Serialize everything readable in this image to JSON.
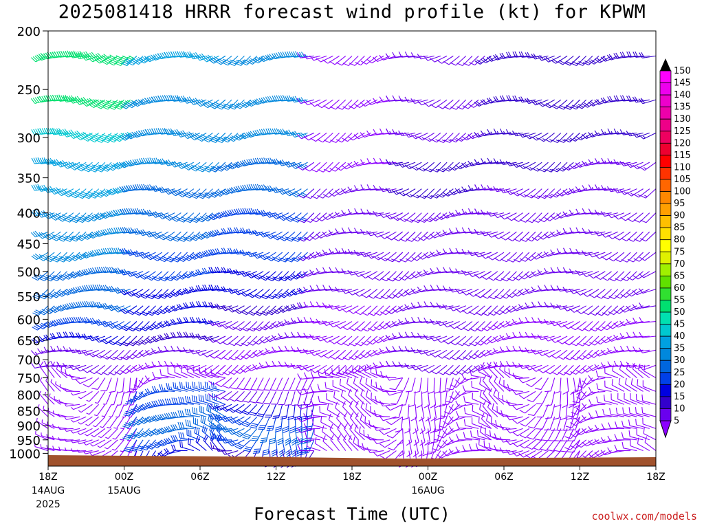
{
  "title": "2025081418 HRRR forecast wind profile (kt) for KPWM",
  "xlabel": "Forecast Time (UTC)",
  "credit": "coolwx.com/models",
  "chart_data": {
    "type": "wind-barb-time-height",
    "y_axis": {
      "scale": "log",
      "reversed": true,
      "ylim": [
        200,
        1050
      ],
      "ticks": [
        200,
        250,
        300,
        350,
        400,
        450,
        500,
        550,
        600,
        650,
        700,
        750,
        800,
        850,
        900,
        950,
        1000
      ]
    },
    "x_axis": {
      "range_hours": [
        0,
        48
      ],
      "ticks": [
        {
          "h": 0,
          "label": "18Z",
          "sub1": "14AUG",
          "sub2": "2025"
        },
        {
          "h": 6,
          "label": "00Z",
          "sub1": "15AUG",
          "sub2": ""
        },
        {
          "h": 12,
          "label": "06Z",
          "sub1": "",
          "sub2": ""
        },
        {
          "h": 18,
          "label": "12Z",
          "sub1": "",
          "sub2": ""
        },
        {
          "h": 24,
          "label": "18Z",
          "sub1": "",
          "sub2": ""
        },
        {
          "h": 30,
          "label": "00Z",
          "sub1": "16AUG",
          "sub2": ""
        },
        {
          "h": 36,
          "label": "06Z",
          "sub1": "",
          "sub2": ""
        },
        {
          "h": 42,
          "label": "12Z",
          "sub1": "",
          "sub2": ""
        },
        {
          "h": 48,
          "label": "18Z",
          "sub1": "",
          "sub2": ""
        }
      ]
    },
    "colorbar": {
      "levels": [
        5,
        10,
        15,
        20,
        25,
        30,
        35,
        40,
        45,
        50,
        55,
        60,
        65,
        70,
        75,
        80,
        85,
        90,
        95,
        100,
        105,
        110,
        115,
        120,
        125,
        130,
        135,
        140,
        145,
        150
      ],
      "colors": [
        "#8b00ff",
        "#6a00ee",
        "#3300cc",
        "#0000e0",
        "#0040e8",
        "#0066dd",
        "#0088dd",
        "#00a0e0",
        "#00c8d0",
        "#00e0b0",
        "#00e070",
        "#30e030",
        "#60e000",
        "#a0f000",
        "#e0f000",
        "#ffff00",
        "#ffe000",
        "#ffc000",
        "#ffa000",
        "#ff8800",
        "#ff6600",
        "#ff3300",
        "#ff0000",
        "#ee0030",
        "#ee0060",
        "#ee0088",
        "#ee00aa",
        "#ee00cc",
        "#ee00ee",
        "#ff00ff"
      ]
    },
    "terrain_color": "#a0522d",
    "levels_hpa": [
      220,
      260,
      295,
      330,
      365,
      400,
      430,
      465,
      500,
      535,
      570,
      605,
      640,
      675,
      715,
      750,
      790,
      830,
      870,
      910,
      950,
      990
    ],
    "segments": [
      {
        "h0": 0,
        "h1": 6.8,
        "values": [
          58,
          55,
          48,
          44,
          41,
          38,
          36,
          35,
          34,
          32,
          30,
          28,
          20,
          14,
          10,
          8,
          7,
          6,
          6,
          6,
          6,
          5
        ]
      },
      {
        "h0": 7,
        "h1": 14,
        "values": [
          40,
          38,
          38,
          36,
          34,
          32,
          30,
          28,
          26,
          24,
          22,
          20,
          18,
          12,
          8,
          8,
          25,
          28,
          30,
          30,
          28,
          20
        ]
      },
      {
        "h0": 14,
        "h1": 20.8,
        "values": [
          35,
          35,
          35,
          33,
          31,
          29,
          27,
          25,
          23,
          21,
          19,
          14,
          10,
          8,
          8,
          8,
          12,
          20,
          28,
          30,
          28,
          15
        ]
      },
      {
        "h0": 21,
        "h1": 28,
        "values": [
          8,
          8,
          8,
          8,
          10,
          12,
          12,
          14,
          12,
          10,
          8,
          8,
          8,
          8,
          8,
          8,
          8,
          8,
          8,
          8,
          8,
          8
        ]
      },
      {
        "h0": 28,
        "h1": 35,
        "values": [
          12,
          12,
          14,
          15,
          15,
          14,
          12,
          12,
          10,
          10,
          10,
          10,
          10,
          10,
          10,
          8,
          8,
          8,
          8,
          8,
          8,
          8
        ]
      },
      {
        "h0": 35,
        "h1": 42,
        "values": [
          18,
          18,
          16,
          15,
          14,
          12,
          12,
          10,
          10,
          10,
          10,
          8,
          8,
          8,
          8,
          8,
          8,
          8,
          8,
          8,
          8,
          8
        ]
      },
      {
        "h0": 42,
        "h1": 48,
        "values": [
          18,
          18,
          16,
          14,
          14,
          12,
          12,
          10,
          10,
          10,
          10,
          8,
          8,
          8,
          8,
          8,
          8,
          8,
          8,
          8,
          8,
          8
        ]
      }
    ]
  }
}
